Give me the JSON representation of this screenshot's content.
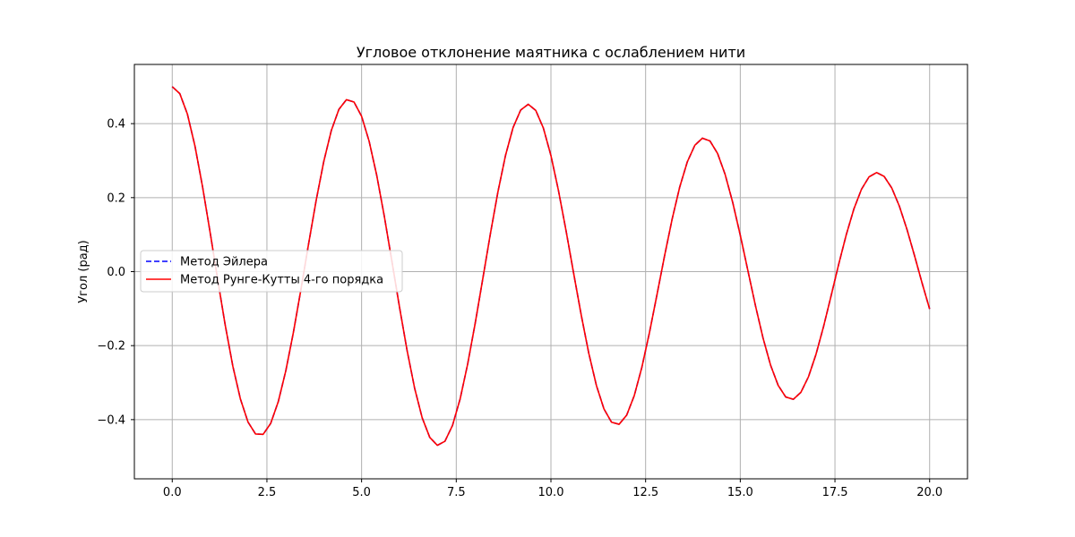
{
  "chart_data": {
    "type": "line",
    "title": "Угловое отклонение маятника с ослаблением нити",
    "xlabel": "",
    "ylabel": "Угол (рад)",
    "xlim": [
      -1.0,
      21.0
    ],
    "ylim": [
      -0.56,
      0.56
    ],
    "xticks": [
      0.0,
      2.5,
      5.0,
      7.5,
      10.0,
      12.5,
      15.0,
      17.5,
      20.0
    ],
    "xtick_labels": [
      "0.0",
      "2.5",
      "5.0",
      "7.5",
      "10.0",
      "12.5",
      "15.0",
      "17.5",
      "20.0"
    ],
    "yticks": [
      -0.4,
      -0.2,
      0.0,
      0.2,
      0.4
    ],
    "ytick_labels": [
      "−0.4",
      "−0.2",
      "0.0",
      "0.2",
      "0.4"
    ],
    "grid": true,
    "legend_position": "center-left",
    "series": [
      {
        "name": "Метод Эйлера",
        "color": "#0000ff",
        "style": "dashed",
        "x": [
          0.0,
          0.2,
          0.4,
          0.6,
          0.8,
          1.0,
          1.2,
          1.4,
          1.6,
          1.8,
          2.0,
          2.2,
          2.4,
          2.6,
          2.8,
          3.0,
          3.2,
          3.4,
          3.6,
          3.8,
          4.0,
          4.2,
          4.4,
          4.6,
          4.8,
          5.0,
          5.2,
          5.4,
          5.6,
          5.8,
          6.0,
          6.2,
          6.4,
          6.6,
          6.8,
          7.0,
          7.2,
          7.4,
          7.6,
          7.8,
          8.0,
          8.2,
          8.4,
          8.6,
          8.8,
          9.0,
          9.2,
          9.4,
          9.6,
          9.8,
          10.0,
          10.2,
          10.4,
          10.6,
          10.8,
          11.0,
          11.2,
          11.4,
          11.6,
          11.8,
          12.0,
          12.2,
          12.4,
          12.6,
          12.8,
          13.0,
          13.2,
          13.4,
          13.6,
          13.8,
          14.0,
          14.2,
          14.4,
          14.6,
          14.8,
          15.0,
          15.2,
          15.4,
          15.6,
          15.8,
          16.0,
          16.2,
          16.4,
          16.6,
          16.8,
          17.0,
          17.2,
          17.4,
          17.6,
          17.8,
          18.0,
          18.2,
          18.4,
          18.6,
          18.8,
          19.0,
          19.2,
          19.4,
          19.6,
          19.8,
          20.0
        ],
        "y": [
          0.5,
          0.4811,
          0.4259,
          0.3394,
          0.2296,
          0.1062,
          -0.0216,
          -0.1451,
          -0.2555,
          -0.3442,
          -0.4064,
          -0.4388,
          -0.4397,
          -0.4101,
          -0.3514,
          -0.2674,
          -0.1638,
          -0.0471,
          0.0747,
          0.1922,
          0.2971,
          0.3812,
          0.4385,
          0.4648,
          0.4584,
          0.4199,
          0.3521,
          0.2601,
          0.1496,
          0.0283,
          -0.0952,
          -0.2123,
          -0.3148,
          -0.3951,
          -0.4479,
          -0.4695,
          -0.4585,
          -0.4159,
          -0.3448,
          -0.2504,
          -0.1395,
          -0.0195,
          0.1016,
          0.2155,
          0.3139,
          0.3894,
          0.4365,
          0.4523,
          0.4356,
          0.388,
          0.3137,
          0.2186,
          0.1101,
          -0.0047,
          -0.1175,
          -0.2209,
          -0.3075,
          -0.3711,
          -0.407,
          -0.4126,
          -0.3879,
          -0.3352,
          -0.259,
          -0.1656,
          -0.0625,
          0.0425,
          0.1417,
          0.2283,
          0.2964,
          0.3415,
          0.3607,
          0.3531,
          0.3195,
          0.2627,
          0.1871,
          0.0984,
          0.0032,
          -0.0916,
          -0.1791,
          -0.2528,
          -0.3073,
          -0.3388,
          -0.3451,
          -0.3263,
          -0.2844,
          -0.2233,
          -0.148,
          -0.0646,
          0.0203,
          0.1003,
          0.1694,
          0.2226,
          0.2561,
          0.2678,
          0.2573,
          0.2261,
          0.1772,
          0.1147,
          0.0436,
          -0.0305,
          -0.101
        ]
      },
      {
        "name": "Метод Рунге-Кутты 4-го порядка",
        "color": "#ff0000",
        "style": "solid",
        "x": [
          0.0,
          0.2,
          0.4,
          0.6,
          0.8,
          1.0,
          1.2,
          1.4,
          1.6,
          1.8,
          2.0,
          2.2,
          2.4,
          2.6,
          2.8,
          3.0,
          3.2,
          3.4,
          3.6,
          3.8,
          4.0,
          4.2,
          4.4,
          4.6,
          4.8,
          5.0,
          5.2,
          5.4,
          5.6,
          5.8,
          6.0,
          6.2,
          6.4,
          6.6,
          6.8,
          7.0,
          7.2,
          7.4,
          7.6,
          7.8,
          8.0,
          8.2,
          8.4,
          8.6,
          8.8,
          9.0,
          9.2,
          9.4,
          9.6,
          9.8,
          10.0,
          10.2,
          10.4,
          10.6,
          10.8,
          11.0,
          11.2,
          11.4,
          11.6,
          11.8,
          12.0,
          12.2,
          12.4,
          12.6,
          12.8,
          13.0,
          13.2,
          13.4,
          13.6,
          13.8,
          14.0,
          14.2,
          14.4,
          14.6,
          14.8,
          15.0,
          15.2,
          15.4,
          15.6,
          15.8,
          16.0,
          16.2,
          16.4,
          16.6,
          16.8,
          17.0,
          17.2,
          17.4,
          17.6,
          17.8,
          18.0,
          18.2,
          18.4,
          18.6,
          18.8,
          19.0,
          19.2,
          19.4,
          19.6,
          19.8,
          20.0
        ],
        "y": [
          0.5,
          0.4811,
          0.4259,
          0.3394,
          0.2296,
          0.1062,
          -0.0216,
          -0.1451,
          -0.2555,
          -0.3442,
          -0.4064,
          -0.4388,
          -0.4397,
          -0.4101,
          -0.3514,
          -0.2674,
          -0.1638,
          -0.0471,
          0.0747,
          0.1922,
          0.2971,
          0.3812,
          0.4385,
          0.4648,
          0.4584,
          0.4199,
          0.3521,
          0.2601,
          0.1496,
          0.0283,
          -0.0952,
          -0.2123,
          -0.3148,
          -0.3951,
          -0.4479,
          -0.4695,
          -0.4585,
          -0.4159,
          -0.3448,
          -0.2504,
          -0.1395,
          -0.0195,
          0.1016,
          0.2155,
          0.3139,
          0.3894,
          0.4365,
          0.4523,
          0.4356,
          0.388,
          0.3137,
          0.2186,
          0.1101,
          -0.0047,
          -0.1175,
          -0.2209,
          -0.3075,
          -0.3711,
          -0.407,
          -0.4126,
          -0.3879,
          -0.3352,
          -0.259,
          -0.1656,
          -0.0625,
          0.0425,
          0.1417,
          0.2283,
          0.2964,
          0.3415,
          0.3607,
          0.3531,
          0.3195,
          0.2627,
          0.1871,
          0.0984,
          0.0032,
          -0.0916,
          -0.1791,
          -0.2528,
          -0.3073,
          -0.3388,
          -0.3451,
          -0.3263,
          -0.2844,
          -0.2233,
          -0.148,
          -0.0646,
          0.0203,
          0.1003,
          0.1694,
          0.2226,
          0.2561,
          0.2678,
          0.2573,
          0.2261,
          0.1772,
          0.1147,
          0.0436,
          -0.0305,
          -0.101
        ]
      }
    ]
  }
}
